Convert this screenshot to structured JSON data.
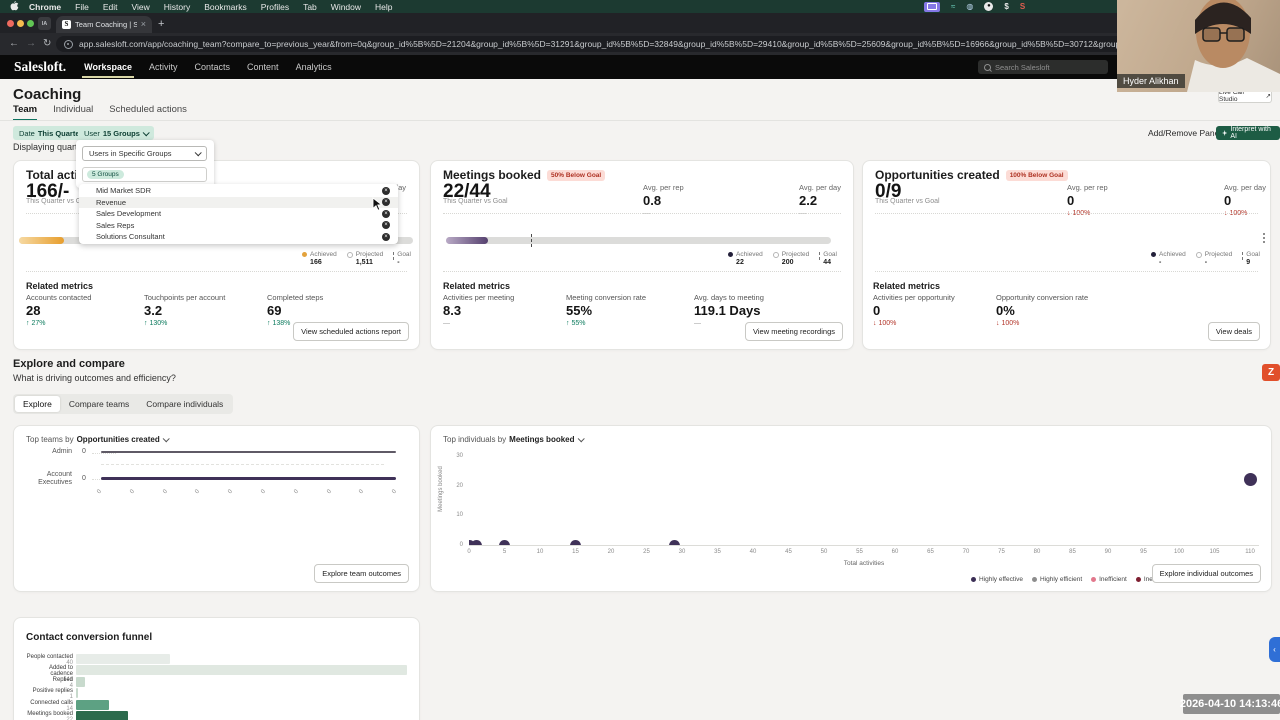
{
  "menubar": {
    "items": [
      "Chrome",
      "File",
      "Edit",
      "View",
      "History",
      "Bookmarks",
      "Profiles",
      "Tab",
      "Window",
      "Help"
    ]
  },
  "browser": {
    "tab_title": "Team Coaching | Salesloft",
    "url": "app.salesloft.com/app/coaching_team?compare_to=previous_year&from=0q&group_id%5B%5D=21204&group_id%5B%5D=31291&group_id%5B%5D=32849&group_id%5B%5D=29410&group_id%5B%5D=25609&group_id%5B%5D=16966&group_id%5B%5D=30712&group_id%5B%5D=25172&group_id%5B..."
  },
  "nav": {
    "logo": "Salesloft.",
    "items": [
      "Workspace",
      "Activity",
      "Contacts",
      "Content",
      "Analytics"
    ],
    "search_placeholder": "Search Salesloft"
  },
  "page": {
    "title": "Coaching",
    "tabs": [
      "Team",
      "Individual",
      "Scheduled actions"
    ],
    "filters": {
      "date_label": "Date",
      "date_value": "This Quarter",
      "user_label": "User",
      "user_value": "15 Groups"
    },
    "displaying": "Displaying quarterly goals",
    "add_remove_panels": "Add/Remove Panels",
    "interpret_ai": "Interpret with AI"
  },
  "group_dropdown": {
    "select_value": "Users in Specific Groups",
    "badge": "5 Groups",
    "groups": [
      "Mid Market SDR",
      "Revenue",
      "Sales Development",
      "Sales Reps",
      "Solutions Consultant"
    ]
  },
  "cards": {
    "total_activities": {
      "title": "Total activities",
      "value": "166/-",
      "subtitle": "This Quarter vs Goal",
      "avg_per_day_label": "Avg. per day",
      "legend": {
        "achieved_label": "Achieved",
        "achieved": "166",
        "projected_label": "Projected",
        "projected": "1,511",
        "goal_label": "Goal",
        "goal": "-"
      },
      "related_title": "Related metrics",
      "related": [
        {
          "label": "Accounts contacted",
          "value": "28",
          "delta": "↑ 27%"
        },
        {
          "label": "Touchpoints per account",
          "value": "3.2",
          "delta": "↑ 130%"
        },
        {
          "label": "Completed steps",
          "value": "69",
          "delta": "↑ 138%"
        }
      ],
      "action": "View scheduled actions report"
    },
    "meetings_booked": {
      "title": "Meetings booked",
      "badge": "50% Below Goal",
      "value": "22/44",
      "subtitle": "This Quarter vs Goal",
      "avg_per_rep": {
        "label": "Avg. per rep",
        "value": "0.8",
        "delta": "—"
      },
      "avg_per_day": {
        "label": "Avg. per day",
        "value": "2.2",
        "delta": "—"
      },
      "legend": {
        "achieved_label": "Achieved",
        "achieved": "22",
        "projected_label": "Projected",
        "projected": "200",
        "goal_label": "Goal",
        "goal": "44"
      },
      "related_title": "Related metrics",
      "related": [
        {
          "label": "Activities per meeting",
          "value": "8.3",
          "delta": "—"
        },
        {
          "label": "Meeting conversion rate",
          "value": "55%",
          "delta": "↑ 55%"
        },
        {
          "label": "Avg. days to meeting",
          "value": "119.1 Days",
          "delta": "—"
        }
      ],
      "action": "View meeting recordings"
    },
    "opportunities_created": {
      "title": "Opportunities created",
      "badge": "100% Below Goal",
      "value": "0/9",
      "subtitle": "This Quarter vs Goal",
      "avg_per_rep": {
        "label": "Avg. per rep",
        "value": "0",
        "delta": "↓ 100%"
      },
      "avg_per_day": {
        "label": "Avg. per day",
        "value": "0",
        "delta": "↓ 100%"
      },
      "legend": {
        "achieved_label": "Achieved",
        "achieved": "-",
        "projected_label": "Projected",
        "projected": "-",
        "goal_label": "Goal",
        "goal": "9"
      },
      "related_title": "Related metrics",
      "related": [
        {
          "label": "Activities per opportunity",
          "value": "0",
          "delta": "↓ 100%"
        },
        {
          "label": "Opportunity conversion rate",
          "value": "0%",
          "delta": "↓ 100%"
        }
      ],
      "action": "View deals"
    }
  },
  "explore": {
    "title": "Explore and compare",
    "subtitle": "What is driving outcomes and efficiency?",
    "tabs": [
      "Explore",
      "Compare teams",
      "Compare individuals"
    ],
    "team_chart_prefix": "Top teams by",
    "team_chart_metric": "Opportunities created",
    "individual_chart_prefix": "Top individuals by",
    "individual_chart_metric": "Meetings booked",
    "team_action": "Explore team outcomes",
    "individual_action": "Explore individual outcomes"
  },
  "chart_data": [
    {
      "type": "bar",
      "orientation": "horizontal",
      "title": "Top teams by Opportunities created",
      "categories": [
        "Admin",
        "Account Executives"
      ],
      "values": [
        0,
        0
      ],
      "xticks": [
        "0",
        "0",
        "0",
        "0",
        "0",
        "0",
        "0",
        "0",
        "0",
        "0"
      ]
    },
    {
      "type": "scatter",
      "title": "Top individuals by Meetings booked",
      "xlabel": "Total activities",
      "ylabel": "Meetings booked",
      "xlim": [
        0,
        113
      ],
      "ylim": [
        0,
        30
      ],
      "xticks_max": 110,
      "xtick_step": 5,
      "yticks": [
        0,
        10,
        20,
        30
      ],
      "points": [
        {
          "x": 0,
          "y": 0
        },
        {
          "x": 1,
          "y": 0
        },
        {
          "x": 5,
          "y": 0
        },
        {
          "x": 15,
          "y": 0
        },
        {
          "x": 29,
          "y": 0
        },
        {
          "x": 110,
          "y": 22
        }
      ],
      "legend": [
        {
          "label": "Highly effective",
          "color": "#3b2e55"
        },
        {
          "label": "Highly efficient",
          "color": "#8d8d8d"
        },
        {
          "label": "Inefficient",
          "color": "#e2788c"
        },
        {
          "label": "Ineffective",
          "color": "#7e1f31"
        }
      ]
    },
    {
      "type": "bar",
      "orientation": "horizontal",
      "title": "Contact conversion funnel",
      "categories": [
        "People contacted",
        "Added to cadence",
        "Replied",
        "Positive replies",
        "Connected calls",
        "Meetings booked"
      ],
      "values": [
        40,
        141,
        4,
        1,
        14,
        22
      ],
      "colors": [
        "#e7ece8",
        "#e0e8e1",
        "#c8dacd",
        "#c8dacd",
        "#5da183",
        "#2c6b4d"
      ]
    }
  ],
  "overlay": {
    "webcam_name": "Hyder Alikhan",
    "live_call_studio": "Live Call Studio",
    "timestamp": "2026-04-10 14:13:46",
    "z_widget": "Z"
  },
  "colors": {
    "accent_green": "#1d5c44",
    "mint_pill": "#cfe9dd",
    "badge_red_bg": "#fcdcd6",
    "badge_red_text": "#ae3223",
    "achieved_orange": "#e3a23c",
    "achieved_dark": "#23203a",
    "scatter_dot": "#3f3158"
  }
}
